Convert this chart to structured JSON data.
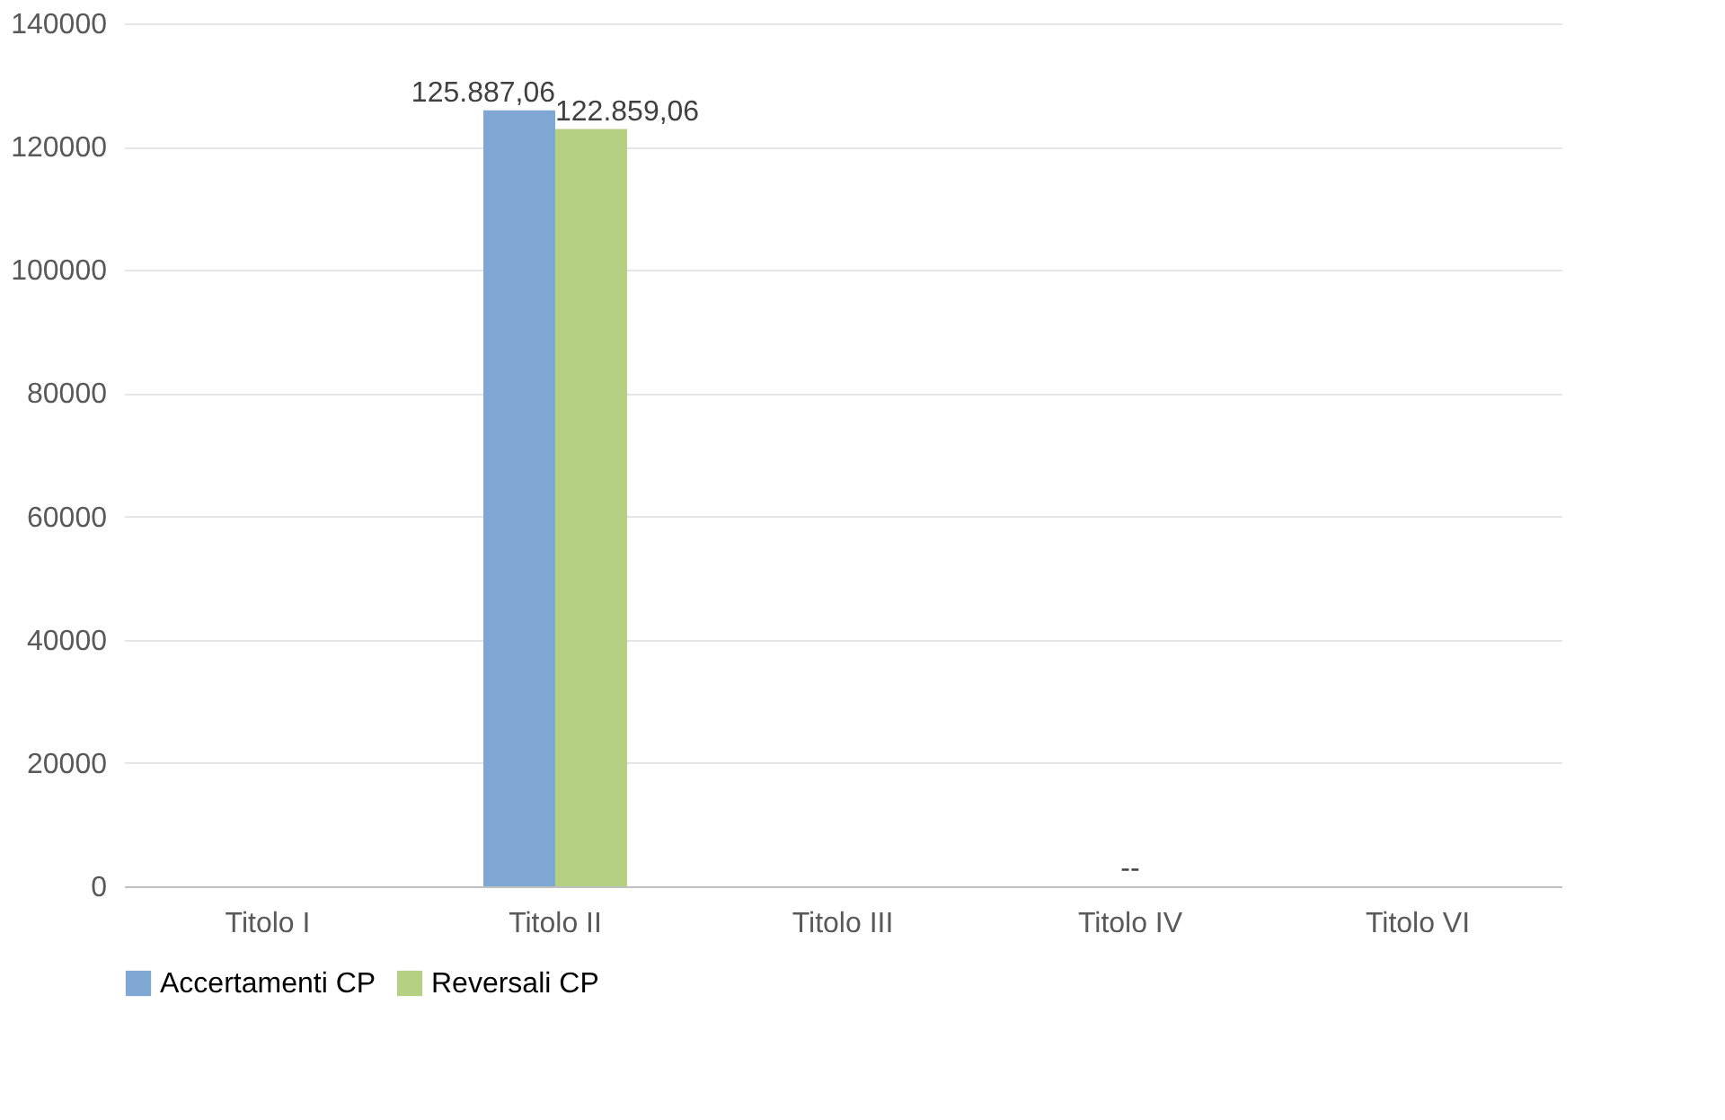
{
  "chart_data": {
    "type": "bar",
    "categories": [
      "Titolo  I",
      "Titolo  II",
      "Titolo  III",
      "Titolo  IV",
      "Titolo  VI"
    ],
    "series": [
      {
        "name": "Accertamenti CP",
        "color": "#7fa7d4",
        "values": [
          null,
          125887.06,
          null,
          0,
          null
        ],
        "value_labels": [
          null,
          "125.887,06",
          null,
          "-",
          null
        ]
      },
      {
        "name": "Reversali CP",
        "color": "#b5cf83",
        "values": [
          null,
          122859.06,
          null,
          0,
          null
        ],
        "value_labels": [
          null,
          "122.859,06",
          null,
          "-",
          null
        ]
      }
    ],
    "ylim": [
      0,
      140000
    ],
    "yticks": [
      0,
      20000,
      40000,
      60000,
      80000,
      100000,
      120000,
      140000
    ],
    "grid": "y",
    "legend": "bottom"
  }
}
